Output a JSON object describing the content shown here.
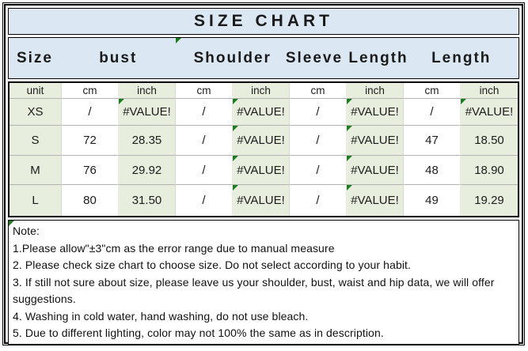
{
  "title": "SIZE CHART",
  "colors": {
    "panel_blue": "#dbe8f3",
    "cell_green": "#e7eedd",
    "cell_white": "#ffffff",
    "border_black": "#000000",
    "gridline_gray": "#b3b3b3",
    "error_triangle_green": "#1e7b1e"
  },
  "header": {
    "columns": [
      {
        "label": "Size"
      },
      {
        "label": "bust"
      },
      {
        "label": "Shoulder",
        "error_marker": true
      },
      {
        "label": "Sleeve Length"
      },
      {
        "label": "Length"
      }
    ]
  },
  "table": {
    "unit_row": [
      "unit",
      "cm",
      "inch",
      "cm",
      "inch",
      "cm",
      "inch",
      "cm",
      "inch"
    ],
    "rows": [
      {
        "size": "XS",
        "cells": [
          {
            "v": "/"
          },
          {
            "v": "#VALUE!",
            "err": true
          },
          {
            "v": "/"
          },
          {
            "v": "#VALUE!",
            "err": true
          },
          {
            "v": "/"
          },
          {
            "v": "#VALUE!",
            "err": true
          },
          {
            "v": "/"
          },
          {
            "v": "#VALUE!",
            "err": true
          }
        ]
      },
      {
        "size": "S",
        "cells": [
          {
            "v": "72"
          },
          {
            "v": "28.35"
          },
          {
            "v": "/"
          },
          {
            "v": "#VALUE!",
            "err": true
          },
          {
            "v": "/"
          },
          {
            "v": "#VALUE!",
            "err": true
          },
          {
            "v": "47"
          },
          {
            "v": "18.50"
          }
        ]
      },
      {
        "size": "M",
        "cells": [
          {
            "v": "76"
          },
          {
            "v": "29.92"
          },
          {
            "v": "/"
          },
          {
            "v": "#VALUE!",
            "err": true
          },
          {
            "v": "/"
          },
          {
            "v": "#VALUE!",
            "err": true
          },
          {
            "v": "48"
          },
          {
            "v": "18.90"
          }
        ]
      },
      {
        "size": "L",
        "cells": [
          {
            "v": "80"
          },
          {
            "v": "31.50"
          },
          {
            "v": "/"
          },
          {
            "v": "#VALUE!",
            "err": true
          },
          {
            "v": "/"
          },
          {
            "v": "#VALUE!",
            "err": true
          },
          {
            "v": "49"
          },
          {
            "v": "19.29"
          }
        ]
      }
    ]
  },
  "notes": {
    "error_marker": true,
    "heading": "Note:",
    "lines": [
      "1.Please allow\"±3\"cm as the error range due to manual measure",
      "2. Please check size chart to choose size. Do not select according to your habit.",
      "3. If still not sure about size, please leave us your shoulder, bust, waist and hip data, we will offer suggestions.",
      "4. Washing in cold water, hand washing, do not use bleach.",
      "5. Due to different lighting, color may not 100% the same as in description."
    ]
  }
}
